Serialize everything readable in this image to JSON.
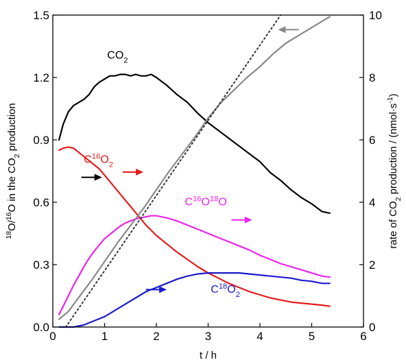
{
  "chart_data": {
    "type": "line",
    "xlabel": "t / h",
    "ylabel_left": {
      "base": "O/",
      "parts": [
        {
          "t": "18",
          "s": "sup"
        },
        {
          "t": "O/",
          "s": "n"
        },
        {
          "t": "16",
          "s": "sup"
        },
        {
          "t": "O in the CO",
          "s": "n"
        },
        {
          "t": "2",
          "s": "sub"
        },
        {
          "t": " production",
          "s": "n"
        }
      ]
    },
    "ylabel_right": {
      "parts": [
        {
          "t": "rate of CO",
          "s": "n"
        },
        {
          "t": "2",
          "s": "sub"
        },
        {
          "t": " production / (nmol·s",
          "s": "n"
        },
        {
          "t": "-1",
          "s": "sup"
        },
        {
          "t": ")",
          "s": "n"
        }
      ]
    },
    "xlim": [
      0,
      6
    ],
    "ylim_left": [
      0,
      1.5
    ],
    "ylim_right": [
      0,
      10
    ],
    "x_ticks": [
      "0",
      "1",
      "2",
      "3",
      "4",
      "5",
      "6"
    ],
    "y_left_ticks": [
      "0.0",
      "0.3",
      "0.6",
      "0.9",
      "1.2",
      "1.5"
    ],
    "y_right_ticks": [
      "0",
      "2",
      "4",
      "6",
      "8",
      "10"
    ],
    "series": [
      {
        "name": "CO2",
        "label_parts": [
          {
            "t": "CO",
            "s": "n"
          },
          {
            "t": "2",
            "s": "sub"
          }
        ],
        "axis": "right",
        "color": "#000000",
        "x": [
          0.12,
          0.2,
          0.3,
          0.4,
          0.5,
          0.6,
          0.7,
          0.8,
          0.9,
          1.0,
          1.1,
          1.2,
          1.3,
          1.4,
          1.5,
          1.6,
          1.7,
          1.8,
          1.9,
          2.0,
          2.2,
          2.4,
          2.6,
          2.8,
          3.0,
          3.2,
          3.4,
          3.6,
          3.8,
          4.0,
          4.2,
          4.4,
          4.6,
          4.8,
          5.0,
          5.2,
          5.35
        ],
        "y": [
          6.0,
          6.5,
          6.9,
          7.1,
          7.2,
          7.3,
          7.45,
          7.7,
          7.85,
          7.95,
          8.05,
          8.05,
          8.1,
          8.1,
          8.05,
          8.1,
          8.05,
          8.05,
          8.1,
          8.0,
          7.75,
          7.45,
          7.2,
          6.85,
          6.55,
          6.3,
          6.05,
          5.8,
          5.55,
          5.3,
          4.95,
          4.7,
          4.4,
          4.15,
          3.95,
          3.7,
          3.65
        ]
      },
      {
        "name": "C16O2",
        "label_parts": [
          {
            "t": "C",
            "s": "n"
          },
          {
            "t": "16",
            "s": "sup"
          },
          {
            "t": "O",
            "s": "n"
          },
          {
            "t": "2",
            "s": "sub"
          }
        ],
        "axis": "left",
        "color": "#e41a1c",
        "x": [
          0.12,
          0.2,
          0.3,
          0.4,
          0.5,
          0.6,
          0.7,
          0.8,
          0.9,
          1.0,
          1.1,
          1.2,
          1.3,
          1.4,
          1.5,
          1.6,
          1.7,
          1.8,
          1.9,
          2.0,
          2.2,
          2.4,
          2.6,
          2.8,
          3.0,
          3.2,
          3.4,
          3.6,
          3.8,
          4.0,
          4.2,
          4.4,
          4.6,
          4.8,
          5.0,
          5.2,
          5.35
        ],
        "y": [
          0.85,
          0.86,
          0.865,
          0.86,
          0.84,
          0.82,
          0.8,
          0.78,
          0.76,
          0.73,
          0.7,
          0.67,
          0.64,
          0.61,
          0.58,
          0.55,
          0.52,
          0.49,
          0.465,
          0.44,
          0.4,
          0.36,
          0.325,
          0.29,
          0.26,
          0.235,
          0.21,
          0.19,
          0.17,
          0.155,
          0.14,
          0.13,
          0.12,
          0.115,
          0.11,
          0.105,
          0.1
        ]
      },
      {
        "name": "C16O18O",
        "label_parts": [
          {
            "t": "C",
            "s": "n"
          },
          {
            "t": "16",
            "s": "sup"
          },
          {
            "t": "O",
            "s": "n"
          },
          {
            "t": "18",
            "s": "sup"
          },
          {
            "t": "O",
            "s": "n"
          }
        ],
        "axis": "left",
        "color": "#ee22ee",
        "x": [
          0.12,
          0.2,
          0.3,
          0.4,
          0.5,
          0.6,
          0.7,
          0.8,
          0.9,
          1.0,
          1.1,
          1.2,
          1.3,
          1.4,
          1.5,
          1.6,
          1.7,
          1.8,
          1.9,
          2.0,
          2.2,
          2.4,
          2.6,
          2.8,
          3.0,
          3.2,
          3.4,
          3.6,
          3.8,
          4.0,
          4.2,
          4.4,
          4.6,
          4.8,
          5.0,
          5.2,
          5.35
        ],
        "y": [
          0.06,
          0.1,
          0.15,
          0.2,
          0.245,
          0.29,
          0.33,
          0.365,
          0.395,
          0.425,
          0.445,
          0.465,
          0.485,
          0.5,
          0.51,
          0.52,
          0.525,
          0.53,
          0.535,
          0.535,
          0.525,
          0.51,
          0.49,
          0.47,
          0.45,
          0.43,
          0.41,
          0.39,
          0.37,
          0.345,
          0.325,
          0.305,
          0.29,
          0.275,
          0.26,
          0.245,
          0.24
        ]
      },
      {
        "name": "C18O2",
        "label_parts": [
          {
            "t": "C",
            "s": "n"
          },
          {
            "t": "18",
            "s": "sup"
          },
          {
            "t": "O",
            "s": "n"
          },
          {
            "t": "2",
            "s": "sub"
          }
        ],
        "axis": "left",
        "color": "#1a1acc",
        "x": [
          0.12,
          0.2,
          0.3,
          0.4,
          0.5,
          0.6,
          0.7,
          0.8,
          0.9,
          1.0,
          1.1,
          1.2,
          1.3,
          1.4,
          1.5,
          1.6,
          1.7,
          1.8,
          1.9,
          2.0,
          2.2,
          2.4,
          2.6,
          2.8,
          3.0,
          3.2,
          3.4,
          3.6,
          3.8,
          4.0,
          4.2,
          4.4,
          4.6,
          4.8,
          5.0,
          5.2,
          5.35
        ],
        "y": [
          0.0,
          0.0,
          0.0,
          0.0,
          0.005,
          0.01,
          0.02,
          0.03,
          0.04,
          0.05,
          0.065,
          0.08,
          0.095,
          0.11,
          0.125,
          0.14,
          0.155,
          0.17,
          0.18,
          0.19,
          0.21,
          0.23,
          0.245,
          0.255,
          0.26,
          0.26,
          0.26,
          0.26,
          0.255,
          0.25,
          0.245,
          0.24,
          0.235,
          0.225,
          0.22,
          0.21,
          0.21
        ]
      },
      {
        "name": "cumulative (gray)",
        "axis": "right",
        "color": "#888888",
        "x": [
          0.12,
          0.3,
          0.5,
          0.75,
          1.0,
          1.25,
          1.5,
          1.75,
          2.0,
          2.25,
          2.5,
          2.75,
          3.0,
          3.25,
          3.5,
          3.75,
          4.0,
          4.25,
          4.5,
          4.75,
          5.0,
          5.2,
          5.35
        ],
        "y": [
          0.25,
          0.5,
          0.95,
          1.5,
          2.1,
          2.7,
          3.25,
          3.8,
          4.4,
          5.0,
          5.55,
          6.1,
          6.7,
          7.2,
          7.6,
          8.0,
          8.35,
          8.75,
          9.1,
          9.35,
          9.6,
          9.8,
          9.95
        ]
      },
      {
        "name": "linear fit (dotted)",
        "axis": "right",
        "color": "#333333",
        "dotted": true,
        "x": [
          0.25,
          4.4
        ],
        "y": [
          0.0,
          10.0
        ]
      }
    ],
    "arrows": [
      {
        "for": "CO2",
        "x1": 0.55,
        "x2": 0.95,
        "y": 0.72,
        "axis": "left",
        "dir": "right",
        "color": "#000000"
      },
      {
        "for": "C16O2",
        "x1": 1.35,
        "x2": 1.75,
        "y": 0.745,
        "axis": "left",
        "dir": "right",
        "color": "#e41a1c"
      },
      {
        "for": "C16O18O",
        "x1": 3.45,
        "x2": 3.85,
        "y": 0.515,
        "axis": "left",
        "dir": "right",
        "color": "#ee22ee"
      },
      {
        "for": "C18O2",
        "x1": 1.8,
        "x2": 2.2,
        "y": 0.18,
        "axis": "left",
        "dir": "right",
        "color": "#1a1acc"
      },
      {
        "for": "cumulative (gray)",
        "x1": 4.35,
        "x2": 4.75,
        "y": 1.43,
        "axis": "left",
        "dir": "left",
        "color": "#888888"
      }
    ],
    "labels": [
      {
        "for": "CO2",
        "x": 1.05,
        "y": 1.29,
        "color": "#000000"
      },
      {
        "for": "C16O2",
        "x": 0.6,
        "y": 0.79,
        "color": "#e41a1c"
      },
      {
        "for": "C16O18O",
        "x": 2.55,
        "y": 0.585,
        "color": "#ee22ee"
      },
      {
        "for": "C18O2",
        "x": 3.05,
        "y": 0.165,
        "color": "#1a1acc"
      }
    ]
  }
}
